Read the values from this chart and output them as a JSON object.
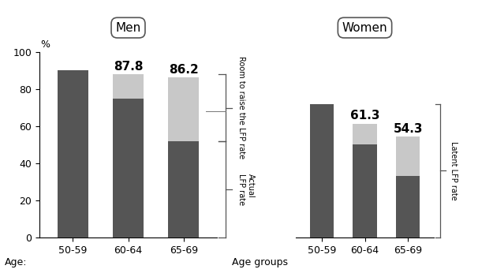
{
  "men_categories": [
    "50-59",
    "60-64",
    "65-69"
  ],
  "women_categories": [
    "50-59",
    "60-64",
    "65-69"
  ],
  "men_actual": [
    90,
    75,
    52
  ],
  "men_latent_total": [
    90,
    87.8,
    86.2
  ],
  "women_actual": [
    72,
    50,
    33
  ],
  "women_latent_total": [
    72,
    61.3,
    54.3
  ],
  "men_labels": [
    "",
    "87.8",
    "86.2"
  ],
  "women_labels": [
    "",
    "61.3",
    "54.3"
  ],
  "dark_color": "#555555",
  "light_color": "#c8c8c8",
  "ylim": [
    0,
    100
  ],
  "yticks": [
    0,
    20,
    40,
    60,
    80,
    100
  ],
  "bar_width": 0.55,
  "men_title": "Men",
  "women_title": "Women",
  "xlabel_left": "Age:",
  "xlabel_right": "Age groups",
  "ylabel_pct": "%",
  "annotation_room": "Room to raise the LFP rate",
  "annotation_actual": "Actual\nLFP rate",
  "annotation_latent": "Latent LFP rate",
  "label_fontsize": 9,
  "title_fontsize": 11,
  "tick_fontsize": 9,
  "bar_label_fontsize": 11
}
